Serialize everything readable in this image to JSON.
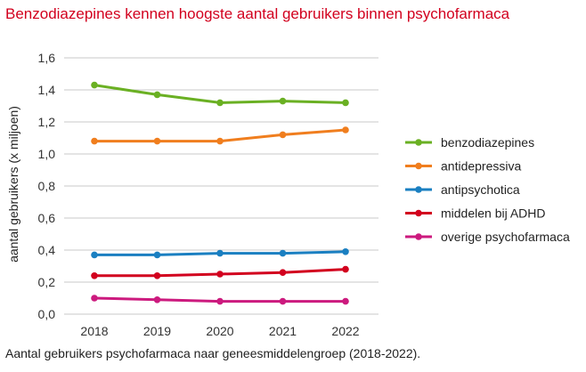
{
  "title": "Benzodiazepines kennen hoogste aantal gebruikers binnen psychofarmaca",
  "caption": "Aantal gebruikers psychofarmaca naar geneesmiddelengroep (2018-2022).",
  "chart_data": {
    "type": "line",
    "title": "Benzodiazepines kennen hoogste aantal gebruikers binnen psychofarmaca",
    "xlabel": "",
    "ylabel": "aantal gebruikers (x miljoen)",
    "categories": [
      "2018",
      "2019",
      "2020",
      "2021",
      "2022"
    ],
    "ylim": [
      0,
      1.6
    ],
    "yticks": [
      "0,0",
      "0,2",
      "0,4",
      "0,6",
      "0,8",
      "1,0",
      "1,2",
      "1,4",
      "1,6"
    ],
    "ytick_values": [
      0,
      0.2,
      0.4,
      0.6,
      0.8,
      1.0,
      1.2,
      1.4,
      1.6
    ],
    "grid": true,
    "legend_position": "right",
    "series": [
      {
        "name": "benzodiazepines",
        "color": "#6ab023",
        "values": [
          1.43,
          1.37,
          1.32,
          1.33,
          1.32
        ]
      },
      {
        "name": "antidepressiva",
        "color": "#f07e1e",
        "values": [
          1.08,
          1.08,
          1.08,
          1.12,
          1.15
        ]
      },
      {
        "name": "antipsychotica",
        "color": "#1a7fc1",
        "values": [
          0.37,
          0.37,
          0.38,
          0.38,
          0.39
        ]
      },
      {
        "name": "middelen bij ADHD",
        "color": "#d2001e",
        "values": [
          0.24,
          0.24,
          0.25,
          0.26,
          0.28
        ]
      },
      {
        "name": "overige psychofarmaca",
        "color": "#cc1a7e",
        "values": [
          0.1,
          0.09,
          0.08,
          0.08,
          0.08
        ]
      }
    ]
  }
}
